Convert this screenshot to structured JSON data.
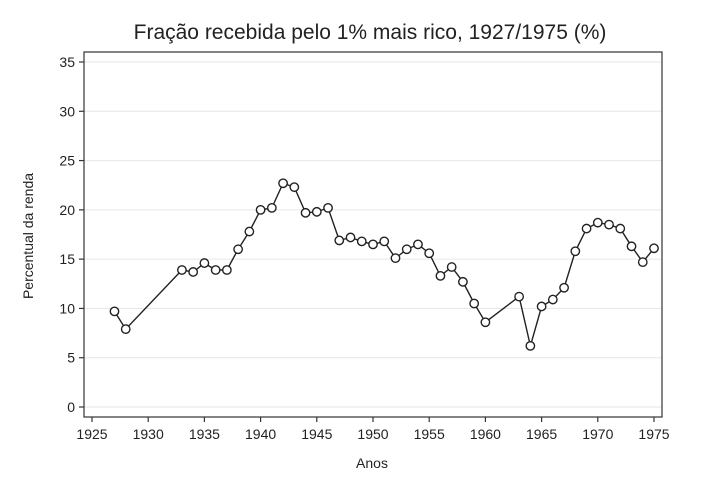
{
  "chart_data": {
    "type": "line",
    "title": "Fração recebida pelo 1% mais rico, 1927/1975 (%)",
    "xlabel": "Anos",
    "ylabel": "Percentual da renda",
    "xlim": [
      1925,
      1975
    ],
    "ylim": [
      0,
      35
    ],
    "xticks": [
      1925,
      1930,
      1935,
      1940,
      1945,
      1950,
      1955,
      1960,
      1965,
      1970,
      1975
    ],
    "yticks": [
      0,
      5,
      10,
      15,
      20,
      25,
      30,
      35
    ],
    "grid": true,
    "marker": "hollow-circle",
    "series": [
      {
        "points": [
          [
            1927,
            9.7
          ],
          [
            1928,
            7.9
          ],
          [
            1933,
            13.9
          ],
          [
            1934,
            13.7
          ],
          [
            1935,
            14.6
          ],
          [
            1936,
            13.9
          ],
          [
            1937,
            13.9
          ],
          [
            1938,
            16.0
          ],
          [
            1939,
            17.8
          ],
          [
            1940,
            20.0
          ],
          [
            1941,
            20.2
          ],
          [
            1942,
            22.7
          ],
          [
            1943,
            22.3
          ],
          [
            1944,
            19.7
          ],
          [
            1945,
            19.8
          ],
          [
            1946,
            20.2
          ],
          [
            1947,
            16.9
          ],
          [
            1948,
            17.2
          ],
          [
            1949,
            16.8
          ],
          [
            1950,
            16.5
          ],
          [
            1951,
            16.8
          ],
          [
            1952,
            15.1
          ],
          [
            1953,
            16.0
          ],
          [
            1954,
            16.5
          ],
          [
            1955,
            15.6
          ],
          [
            1956,
            13.3
          ],
          [
            1957,
            14.2
          ],
          [
            1958,
            12.7
          ],
          [
            1959,
            10.5
          ],
          [
            1960,
            8.6
          ],
          [
            1963,
            11.2
          ],
          [
            1964,
            6.2
          ],
          [
            1965,
            10.2
          ],
          [
            1966,
            10.9
          ],
          [
            1967,
            12.1
          ],
          [
            1968,
            15.8
          ],
          [
            1969,
            18.1
          ],
          [
            1970,
            18.7
          ],
          [
            1971,
            18.5
          ],
          [
            1972,
            18.1
          ],
          [
            1973,
            16.3
          ],
          [
            1974,
            14.7
          ],
          [
            1975,
            16.1
          ]
        ]
      }
    ]
  }
}
